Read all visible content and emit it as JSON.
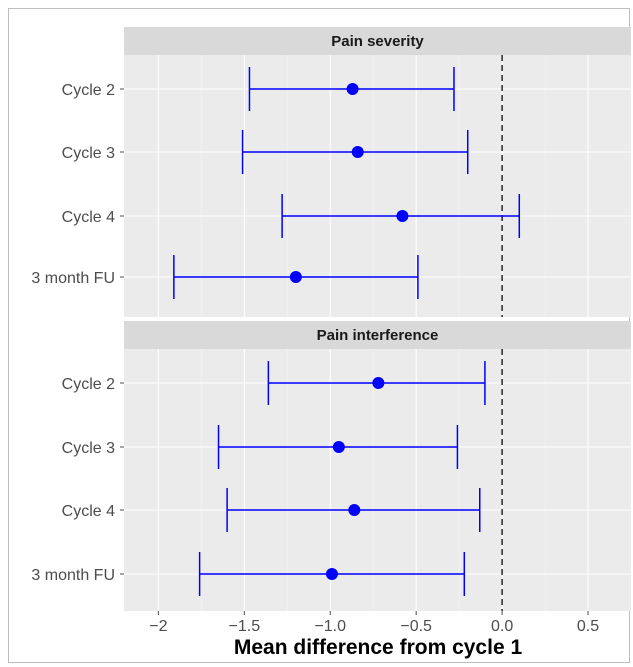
{
  "chart_data": {
    "type": "forest",
    "xlabel": "Mean difference from cycle 1",
    "xlim": [
      -2.2,
      0.75
    ],
    "xticks": [
      -2,
      -1.5,
      -1,
      -0.5,
      0,
      0.5
    ],
    "xtick_labels": [
      "−2",
      "−1.5",
      "−1.0",
      "−0.5",
      "0.0",
      "0.5"
    ],
    "reference_line": 0,
    "point_color": "#0000ff",
    "panel_bg": "#ebebeb",
    "strip_bg": "#d9d9d9",
    "categories": [
      "Cycle 2",
      "Cycle 3",
      "Cycle 4",
      "3 month FU"
    ],
    "panels": [
      {
        "title": "Pain severity",
        "estimates": [
          -0.87,
          -0.84,
          -0.58,
          -1.2
        ],
        "lower": [
          -1.47,
          -1.51,
          -1.28,
          -1.91
        ],
        "upper": [
          -0.28,
          -0.2,
          0.1,
          -0.49
        ]
      },
      {
        "title": "Pain interference",
        "estimates": [
          -0.72,
          -0.95,
          -0.86,
          -0.99
        ],
        "lower": [
          -1.36,
          -1.65,
          -1.6,
          -1.76
        ],
        "upper": [
          -0.1,
          -0.26,
          -0.13,
          -0.22
        ]
      }
    ]
  }
}
